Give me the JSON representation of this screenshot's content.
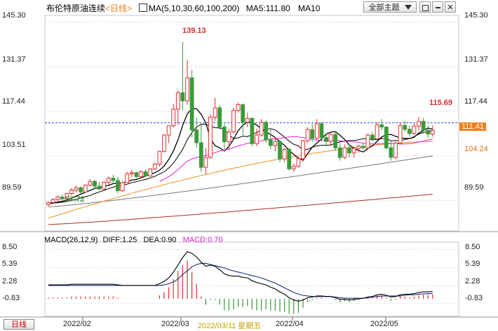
{
  "header": {
    "title": "布伦特原油连续",
    "period_label": "<日线>",
    "ma_label": "MA(5,10,30,60,100,200)",
    "ma5_label": "MA5:111.80",
    "ma10_label": "MA10",
    "theme_button": "全部主题",
    "icons": [
      "dropdown-arrow-icon",
      "restore-icon",
      "minimize-icon",
      "close-icon"
    ]
  },
  "price_axis": {
    "ticks": [
      "145.30",
      "131.37",
      "117.44",
      "103.51",
      "89.59"
    ]
  },
  "macd": {
    "label": "MACD(26,12,9)",
    "diff_label": "DIFF:1.25",
    "dea_label": "DEA:0.90",
    "macd_label": "MACD:0.70",
    "ticks": [
      "8.50",
      "5.39",
      "2.28",
      "-0.83"
    ]
  },
  "footer": {
    "period_button": "日线",
    "date_labels": [
      "2022/02",
      "2022/03",
      "2022/04",
      "2022/05"
    ],
    "cursor_date": "2022/03/11 星期五"
  },
  "annotations": {
    "high": "139.13",
    "low": "87.72",
    "recent_high": "115.69",
    "current_tag": "111.41",
    "ma_tag": "104.24"
  },
  "colors": {
    "up": "#e03030",
    "down": "#3a9a3a",
    "ma5": "#000000",
    "ma30": "#e020d0",
    "ma60": "#f09020",
    "ma100": "#777777",
    "ma200": "#a83020",
    "current": "#f08020",
    "grid": "#b8c4d8",
    "ref_line": "#3050c0"
  },
  "chart_data": [
    {
      "type": "candlestick",
      "title": "布伦特原油连续",
      "series_labels": [
        "MA5:111.80",
        "MA10"
      ],
      "ylim": [
        80,
        147
      ],
      "yticks": [
        145.3,
        131.37,
        117.44,
        103.51,
        89.59
      ],
      "x_labels": [
        "2022/02",
        "2022/03",
        "2022/04",
        "2022/05"
      ],
      "x_label_index": [
        6,
        38,
        56,
        82
      ],
      "candles_ohlc": [
        [
          88.2,
          89.2,
          87.7,
          88.9
        ],
        [
          88.9,
          90.3,
          88.5,
          89.8
        ],
        [
          89.8,
          91.2,
          89.3,
          90.6
        ],
        [
          90.6,
          91.5,
          89.8,
          90.0
        ],
        [
          90.0,
          92.0,
          89.9,
          91.7
        ],
        [
          91.7,
          93.4,
          91.2,
          92.8
        ],
        [
          92.8,
          94.2,
          92.0,
          93.5
        ],
        [
          93.5,
          94.0,
          91.6,
          92.2
        ],
        [
          92.2,
          94.6,
          92.0,
          94.3
        ],
        [
          94.3,
          96.2,
          93.9,
          95.5
        ],
        [
          95.5,
          96.0,
          93.4,
          94.0
        ],
        [
          94.0,
          95.4,
          92.8,
          93.1
        ],
        [
          93.1,
          95.6,
          92.9,
          95.2
        ],
        [
          95.2,
          97.0,
          94.6,
          96.5
        ],
        [
          96.5,
          97.6,
          95.0,
          95.8
        ],
        [
          95.8,
          97.0,
          91.8,
          92.6
        ],
        [
          92.6,
          95.6,
          92.2,
          95.1
        ],
        [
          95.1,
          98.5,
          95.0,
          97.9
        ],
        [
          97.9,
          99.2,
          96.8,
          98.2
        ],
        [
          98.2,
          98.6,
          96.5,
          97.0
        ],
        [
          97.0,
          99.0,
          96.5,
          98.5
        ],
        [
          98.5,
          99.4,
          96.9,
          97.2
        ],
        [
          97.2,
          99.6,
          97.0,
          99.4
        ],
        [
          99.4,
          101.4,
          99.0,
          100.9
        ],
        [
          100.9,
          105.0,
          100.2,
          104.9
        ],
        [
          104.9,
          110.3,
          104.5,
          110.0
        ],
        [
          110.0,
          113.0,
          107.5,
          112.9
        ],
        [
          112.9,
          119.8,
          112.4,
          118.1
        ],
        [
          118.1,
          124.0,
          113.2,
          123.2
        ],
        [
          123.2,
          139.13,
          117.8,
          120.7
        ],
        [
          120.7,
          133.5,
          119.5,
          127.9
        ],
        [
          127.9,
          130.4,
          109.2,
          111.6
        ],
        [
          111.6,
          115.5,
          106.0,
          107.6
        ],
        [
          107.6,
          113.2,
          98.5,
          99.9
        ],
        [
          99.9,
          106.0,
          97.6,
          103.0
        ],
        [
          103.0,
          116.5,
          102.5,
          115.6
        ],
        [
          115.6,
          121.6,
          114.5,
          118.5
        ],
        [
          118.5,
          119.4,
          111.8,
          112.5
        ],
        [
          112.5,
          113.5,
          105.5,
          107.9
        ],
        [
          107.9,
          112.0,
          105.5,
          111.0
        ],
        [
          111.0,
          118.5,
          110.5,
          117.7
        ],
        [
          117.7,
          120.2,
          117.0,
          119.5
        ],
        [
          119.5,
          119.9,
          110.0,
          114.0
        ],
        [
          114.0,
          117.0,
          112.5,
          115.2
        ],
        [
          115.2,
          115.6,
          106.5,
          107.3
        ],
        [
          107.3,
          112.0,
          106.5,
          110.0
        ],
        [
          110.0,
          115.0,
          109.5,
          114.0
        ],
        [
          114.0,
          114.6,
          107.6,
          108.5
        ],
        [
          108.5,
          112.0,
          105.5,
          106.7
        ],
        [
          106.7,
          109.4,
          104.9,
          108.0
        ],
        [
          108.0,
          108.5,
          101.5,
          102.5
        ],
        [
          102.5,
          106.0,
          101.5,
          105.5
        ],
        [
          105.5,
          106.0,
          98.9,
          99.4
        ],
        [
          99.4,
          101.0,
          98.5,
          100.2
        ],
        [
          100.2,
          103.2,
          99.8,
          102.6
        ],
        [
          102.6,
          108.5,
          101.6,
          108.2
        ],
        [
          108.2,
          112.4,
          107.5,
          111.7
        ],
        [
          111.7,
          113.5,
          108.0,
          109.0
        ],
        [
          109.0,
          115.0,
          108.5,
          113.5
        ],
        [
          113.5,
          114.0,
          108.0,
          109.2
        ],
        [
          109.2,
          110.5,
          106.5,
          108.0
        ],
        [
          108.0,
          110.5,
          106.5,
          110.2
        ],
        [
          110.2,
          111.0,
          105.0,
          106.0
        ],
        [
          106.0,
          107.5,
          102.0,
          103.0
        ],
        [
          103.0,
          107.0,
          102.5,
          106.0
        ],
        [
          106.0,
          107.0,
          103.0,
          104.4
        ],
        [
          104.4,
          106.5,
          103.0,
          105.8
        ],
        [
          105.8,
          107.0,
          104.5,
          106.5
        ],
        [
          106.5,
          107.5,
          105.5,
          106.0
        ],
        [
          106.0,
          110.5,
          105.5,
          110.0
        ],
        [
          110.0,
          111.0,
          108.0,
          108.8
        ],
        [
          108.8,
          114.0,
          108.5,
          113.2
        ],
        [
          113.2,
          115.0,
          111.5,
          112.5
        ],
        [
          112.5,
          112.8,
          105.5,
          106.0
        ],
        [
          106.0,
          108.5,
          102.0,
          103.0
        ],
        [
          103.0,
          108.0,
          102.5,
          107.5
        ],
        [
          107.5,
          114.0,
          107.0,
          113.0
        ],
        [
          113.0,
          114.5,
          111.0,
          111.8
        ],
        [
          111.8,
          113.0,
          109.5,
          110.5
        ],
        [
          110.5,
          113.5,
          110.0,
          112.8
        ],
        [
          112.8,
          115.69,
          111.5,
          114.3
        ],
        [
          114.3,
          115.3,
          110.5,
          111.5
        ],
        [
          111.5,
          113.0,
          109.0,
          110.3
        ],
        [
          110.3,
          113.0,
          109.5,
          111.41
        ]
      ],
      "ma_lines": [
        {
          "period": 5,
          "values": [
            88.6,
            88.8,
            89.0,
            89.3,
            89.6,
            90.2,
            90.9,
            91.5,
            92.1,
            92.7,
            93.3,
            93.6,
            93.9,
            94.3,
            94.8,
            95.0,
            95.0,
            95.4,
            95.9,
            96.1,
            96.6,
            97.2,
            97.7,
            98.2,
            99.0,
            100.3,
            102.4,
            105.0,
            108.5,
            113.0,
            116.6,
            118.3,
            118.2,
            116.5,
            113.8,
            108.9,
            106.7,
            106.0,
            105.0,
            106.4,
            108.7,
            111.4,
            113.1,
            114.1,
            114.0,
            113.1,
            112.0,
            110.9,
            110.2,
            109.2,
            107.9,
            106.8,
            105.2,
            103.9,
            102.8,
            102.1,
            104.2,
            106.2,
            107.5,
            108.8,
            110.3,
            110.9,
            111.1,
            109.9,
            108.6,
            106.9,
            105.8,
            105.2,
            104.7,
            105.8,
            106.6,
            108.0,
            109.4,
            110.1,
            110.2,
            109.6,
            109.1,
            109.0,
            108.9,
            109.3,
            110.6,
            111.4,
            112.2,
            111.8
          ]
        },
        {
          "period": 10,
          "values": [
            88.6,
            88.7,
            88.8,
            89.0,
            89.2,
            89.6,
            89.9,
            90.3,
            90.7,
            91.1,
            91.7,
            92.2,
            92.7,
            93.2,
            93.7,
            94.1,
            94.3,
            94.6,
            95.1,
            95.4,
            95.8,
            96.1,
            96.6,
            97.1,
            97.8,
            98.5,
            99.7,
            101.2,
            103.3,
            105.5,
            108.5,
            110.8,
            112.5,
            113.4,
            113.3,
            112.8,
            112.3,
            112.2,
            111.7,
            110.1,
            108.9,
            109.1,
            109.7,
            109.5,
            110.2,
            110.8,
            111.5,
            111.8,
            112.0,
            111.6,
            110.5,
            109.4,
            108.1,
            107.1,
            106.6,
            105.3,
            105.5,
            106.2,
            106.6,
            106.8,
            106.8,
            106.9,
            107.4,
            107.9,
            108.1,
            108.3,
            108.3,
            108.5,
            108.9,
            108.7,
            108.6,
            108.6,
            108.9,
            108.9,
            108.2,
            108.3,
            108.3,
            108.6,
            108.9,
            109.5,
            110.3,
            110.8,
            111.0,
            111.4
          ]
        },
        {
          "period": 30,
          "start_index": 24,
          "values": [
            95.5,
            96.2,
            97.0,
            98.0,
            99.2,
            100.5,
            101.8,
            102.5,
            103.0,
            103.2,
            103.6,
            104.0,
            104.5,
            105.0,
            105.2,
            105.6,
            106.1,
            106.6,
            107.0,
            107.4,
            107.6,
            107.8,
            108.2,
            108.5,
            108.7,
            108.9,
            109.0,
            109.2,
            109.4,
            109.5,
            109.4,
            109.2,
            108.9,
            108.6,
            108.4,
            108.3,
            108.3,
            108.3,
            108.3,
            108.2,
            108.1,
            108.0,
            107.9,
            107.7,
            107.5,
            107.3,
            107.2,
            107.2,
            107.3,
            107.4,
            107.4,
            107.3,
            107.2,
            107.2,
            107.3,
            107.5,
            107.8,
            108.1,
            108.4,
            108.7
          ]
        },
        {
          "period": 60,
          "start_index": 0,
          "values": [
            null
          ]
        },
        {
          "period": 100,
          "values": [
            null
          ]
        },
        {
          "period": 200,
          "values": [
            null
          ]
        }
      ]
    },
    {
      "type": "macd",
      "title": "MACD(26,12,9)",
      "ylim": [
        -3,
        9.5
      ],
      "yticks": [
        8.5,
        5.39,
        2.28,
        -0.83
      ],
      "diff": [
        2.4,
        2.4,
        2.4,
        2.4,
        2.4,
        2.5,
        2.5,
        2.5,
        2.5,
        2.5,
        2.5,
        2.5,
        2.5,
        2.5,
        2.5,
        2.4,
        2.3,
        2.3,
        2.3,
        2.3,
        2.3,
        2.3,
        2.3,
        2.3,
        2.6,
        3.0,
        3.6,
        4.6,
        5.8,
        7.1,
        8.1,
        7.8,
        7.2,
        6.3,
        5.6,
        5.8,
        5.6,
        5.0,
        4.3,
        4.0,
        3.9,
        3.9,
        3.7,
        3.6,
        3.1,
        2.8,
        2.6,
        2.4,
        2.0,
        1.7,
        1.2,
        0.8,
        0.2,
        -0.2,
        -0.4,
        -0.2,
        0.2,
        0.3,
        0.5,
        0.5,
        0.4,
        0.4,
        0.2,
        -0.1,
        -0.1,
        -0.2,
        -0.1,
        0.0,
        0.1,
        0.3,
        0.4,
        0.7,
        0.8,
        0.6,
        0.3,
        0.4,
        0.7,
        0.8,
        0.8,
        0.9,
        1.1,
        1.2,
        1.2,
        1.25
      ],
      "dea": [
        2.3,
        2.3,
        2.3,
        2.3,
        2.3,
        2.3,
        2.3,
        2.3,
        2.3,
        2.3,
        2.3,
        2.3,
        2.3,
        2.3,
        2.3,
        2.3,
        2.3,
        2.3,
        2.3,
        2.3,
        2.3,
        2.3,
        2.3,
        2.3,
        2.3,
        2.4,
        2.6,
        2.9,
        3.4,
        4.2,
        4.8,
        5.5,
        5.9,
        6.1,
        6.1,
        5.9,
        5.7,
        5.5,
        5.3,
        5.0,
        4.8,
        4.6,
        4.4,
        4.2,
        4.0,
        3.8,
        3.6,
        3.3,
        3.0,
        2.7,
        2.3,
        1.9,
        1.5,
        1.1,
        0.8,
        0.6,
        0.5,
        0.4,
        0.4,
        0.4,
        0.4,
        0.4,
        0.3,
        0.2,
        0.1,
        0.1,
        0.1,
        0.1,
        0.1,
        0.2,
        0.3,
        0.4,
        0.5,
        0.5,
        0.5,
        0.5,
        0.5,
        0.6,
        0.7,
        0.7,
        0.8,
        0.85,
        0.88,
        0.9
      ]
    }
  ]
}
